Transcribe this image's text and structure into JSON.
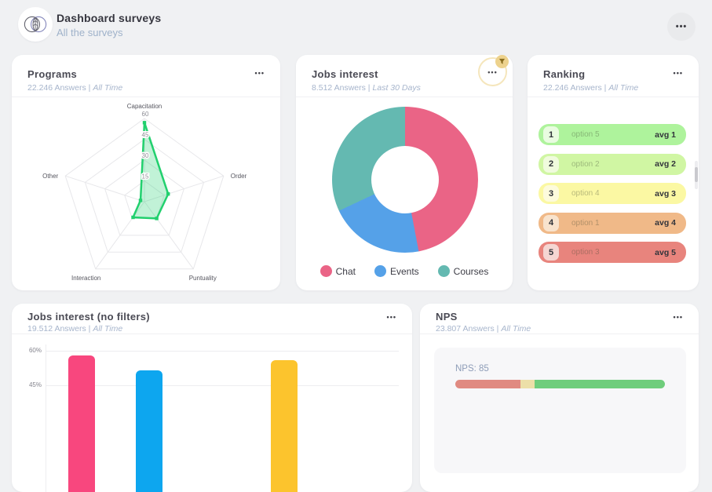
{
  "header": {
    "title": "Dashboard surveys",
    "subtitle": "All the surveys"
  },
  "icons": {
    "ellipsis": "•••",
    "logo": "leaf-venn-logo",
    "filter_badge": "funnel"
  },
  "cards": {
    "programs": {
      "title": "Programs",
      "answers": "22.246 Answers |",
      "period": "All Time"
    },
    "jobs": {
      "title": "Jobs interest",
      "answers": "8.512 Answers |",
      "period": "Last 30 Days"
    },
    "ranking": {
      "title": "Ranking",
      "answers": "22.246 Answers |",
      "period": "All Time"
    },
    "bars": {
      "title": "Jobs interest (no filters)",
      "answers": "19.512 Answers |",
      "period": "All Time"
    },
    "nps": {
      "title": "NPS",
      "answers": "23.807 Answers |",
      "period": "All Time"
    }
  },
  "chart_data": [
    {
      "card": "Programs",
      "type": "radar",
      "categories": [
        "Capacitation",
        "Order",
        "Puntuality",
        "Interaction",
        "Other"
      ],
      "values": [
        57,
        18,
        15,
        14,
        3
      ],
      "max": 60,
      "ticks": [
        15,
        30,
        45,
        60
      ],
      "line_color": "#22d06e",
      "fill_color": "rgba(34,208,110,0.28)",
      "grid": "pentagon"
    },
    {
      "card": "Jobs interest",
      "type": "donut",
      "labels": [
        "Chat",
        "Events",
        "Courses"
      ],
      "values": [
        47,
        21,
        32
      ],
      "colors": [
        "#ea6486",
        "#55a1e8",
        "#64b9b1"
      ],
      "legend_position": "bottom"
    },
    {
      "card": "Ranking",
      "type": "table",
      "rows": [
        {
          "rank": "1",
          "option": "option 5",
          "avg": "avg 1",
          "color": "#aef39c",
          "badge": "#e9fce0"
        },
        {
          "rank": "2",
          "option": "option 2",
          "avg": "avg 2",
          "color": "#d0f6a3",
          "badge": "#f0fbdd"
        },
        {
          "rank": "3",
          "option": "option 4",
          "avg": "avg 3",
          "color": "#fbf8a3",
          "badge": "#fdfbdc"
        },
        {
          "rank": "4",
          "option": "option 1",
          "avg": "avg 4",
          "color": "#f0b988",
          "badge": "#f8e3cd"
        },
        {
          "rank": "5",
          "option": "option 3",
          "avg": "avg 5",
          "color": "#e8847d",
          "badge": "#f5d6d2"
        }
      ]
    },
    {
      "card": "Jobs interest (no filters)",
      "type": "bar",
      "values": [
        58,
        51.5,
        0,
        56
      ],
      "colors": [
        "#f8477e",
        "#0da6ef",
        null,
        "#fcc42d"
      ],
      "y_ticks": [
        "60%",
        "45%"
      ],
      "y_tick_values": [
        60,
        45
      ],
      "ylim": [
        0,
        60
      ]
    },
    {
      "card": "NPS",
      "type": "gauge",
      "label": "NPS: 85",
      "value": 85,
      "segments": [
        {
          "color": "#e08a81",
          "pct": 31
        },
        {
          "color": "#ecdfa8",
          "pct": 7
        },
        {
          "color": "#6fcd7c",
          "pct": 62
        }
      ]
    }
  ]
}
